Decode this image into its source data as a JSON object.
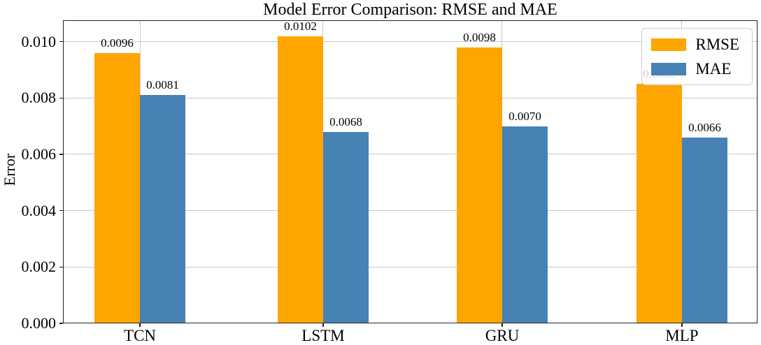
{
  "figure": {
    "background": "#ffffff",
    "spine_color": "#222222",
    "grid_color": "#c8c8c8"
  },
  "chart_data": {
    "type": "bar",
    "title": "Model Error Comparison: RMSE and MAE",
    "xlabel": "",
    "ylabel": "Error",
    "categories": [
      "TCN",
      "LSTM",
      "GRU",
      "MLP"
    ],
    "series": [
      {
        "name": "RMSE",
        "color": "#FFA500",
        "values": [
          0.0096,
          0.0102,
          0.0098,
          0.0085
        ],
        "bar_labels": [
          "0.0096",
          "0.0102",
          "0.0098",
          "0.0085"
        ]
      },
      {
        "name": "MAE",
        "color": "#4682B4",
        "values": [
          0.0081,
          0.0068,
          0.007,
          0.0066
        ],
        "bar_labels": [
          "0.0081",
          "0.0068",
          "0.0070",
          "0.0066"
        ]
      }
    ],
    "ylim": [
      0,
      0.01076
    ],
    "yticks": [
      0,
      0.002,
      0.004,
      0.006,
      0.008,
      0.01
    ],
    "ytick_labels": [
      "0.000",
      "0.002",
      "0.004",
      "0.006",
      "0.008",
      "0.010"
    ],
    "grid": true,
    "legend": {
      "position": "upper right",
      "entries": [
        "RMSE",
        "MAE"
      ]
    }
  }
}
